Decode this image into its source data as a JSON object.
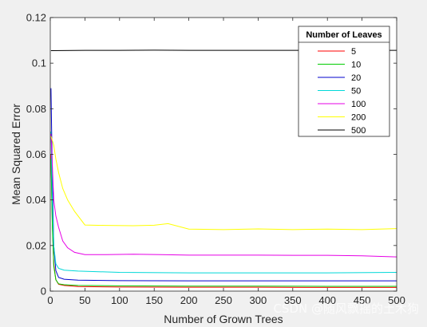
{
  "chart_data": {
    "type": "line",
    "title": "",
    "xlabel": "Number of Grown Trees",
    "ylabel": "Mean Squared Error",
    "xlim": [
      0,
      500
    ],
    "ylim": [
      0,
      0.12
    ],
    "xticks": [
      0,
      50,
      100,
      150,
      200,
      250,
      300,
      350,
      400,
      450,
      500
    ],
    "yticks": [
      0,
      0.02,
      0.04,
      0.06,
      0.08,
      0.1,
      0.12
    ],
    "xtick_labels": [
      "0",
      "50",
      "100",
      "150",
      "200",
      "250",
      "300",
      "350",
      "400",
      "450",
      "500"
    ],
    "ytick_labels": [
      "0",
      "0.02",
      "0.04",
      "0.06",
      "0.08",
      "0.1",
      "0.12"
    ],
    "grid": false,
    "legend": {
      "title": "Number of Leaves",
      "placement": "top-right"
    },
    "series": [
      {
        "name": "5",
        "color": "#ff0000",
        "points": [
          [
            1,
            0.06
          ],
          [
            3,
            0.03
          ],
          [
            5,
            0.012
          ],
          [
            8,
            0.005
          ],
          [
            12,
            0.003
          ],
          [
            20,
            0.0025
          ],
          [
            40,
            0.002
          ],
          [
            100,
            0.0018
          ],
          [
            200,
            0.0017
          ],
          [
            300,
            0.0017
          ],
          [
            400,
            0.0016
          ],
          [
            500,
            0.0016
          ]
        ]
      },
      {
        "name": "10",
        "color": "#00cc00",
        "points": [
          [
            1,
            0.058
          ],
          [
            3,
            0.028
          ],
          [
            5,
            0.011
          ],
          [
            8,
            0.005
          ],
          [
            12,
            0.0032
          ],
          [
            20,
            0.0028
          ],
          [
            40,
            0.0025
          ],
          [
            100,
            0.0023
          ],
          [
            200,
            0.0022
          ],
          [
            300,
            0.0022
          ],
          [
            400,
            0.0021
          ],
          [
            500,
            0.0021
          ]
        ]
      },
      {
        "name": "20",
        "color": "#0000cc",
        "points": [
          [
            1,
            0.089
          ],
          [
            3,
            0.05
          ],
          [
            5,
            0.02
          ],
          [
            8,
            0.009
          ],
          [
            12,
            0.006
          ],
          [
            20,
            0.0052
          ],
          [
            40,
            0.0048
          ],
          [
            100,
            0.0046
          ],
          [
            200,
            0.0045
          ],
          [
            300,
            0.0045
          ],
          [
            400,
            0.0045
          ],
          [
            500,
            0.0045
          ]
        ]
      },
      {
        "name": "50",
        "color": "#00d8d8",
        "points": [
          [
            1,
            0.07
          ],
          [
            3,
            0.04
          ],
          [
            5,
            0.02
          ],
          [
            8,
            0.012
          ],
          [
            12,
            0.01
          ],
          [
            20,
            0.0092
          ],
          [
            40,
            0.0088
          ],
          [
            100,
            0.0082
          ],
          [
            200,
            0.008
          ],
          [
            300,
            0.008
          ],
          [
            400,
            0.008
          ],
          [
            500,
            0.0082
          ]
        ]
      },
      {
        "name": "100",
        "color": "#e600e6",
        "points": [
          [
            1,
            0.069
          ],
          [
            3,
            0.055
          ],
          [
            5,
            0.04
          ],
          [
            8,
            0.033
          ],
          [
            12,
            0.028
          ],
          [
            18,
            0.022
          ],
          [
            25,
            0.019
          ],
          [
            35,
            0.017
          ],
          [
            50,
            0.016
          ],
          [
            80,
            0.016
          ],
          [
            120,
            0.0162
          ],
          [
            160,
            0.016
          ],
          [
            200,
            0.0158
          ],
          [
            250,
            0.0158
          ],
          [
            300,
            0.0158
          ],
          [
            350,
            0.0157
          ],
          [
            400,
            0.0157
          ],
          [
            450,
            0.0155
          ],
          [
            500,
            0.015
          ]
        ]
      },
      {
        "name": "200",
        "color": "#ffff00",
        "points": [
          [
            1,
            0.068
          ],
          [
            3,
            0.066
          ],
          [
            5,
            0.064
          ],
          [
            8,
            0.058
          ],
          [
            12,
            0.052
          ],
          [
            18,
            0.045
          ],
          [
            25,
            0.04
          ],
          [
            35,
            0.035
          ],
          [
            50,
            0.029
          ],
          [
            80,
            0.0288
          ],
          [
            120,
            0.0287
          ],
          [
            150,
            0.0289
          ],
          [
            170,
            0.0296
          ],
          [
            200,
            0.0272
          ],
          [
            250,
            0.027
          ],
          [
            300,
            0.0273
          ],
          [
            350,
            0.027
          ],
          [
            400,
            0.0272
          ],
          [
            450,
            0.027
          ],
          [
            500,
            0.0274
          ]
        ]
      },
      {
        "name": "500",
        "color": "#000000",
        "points": [
          [
            1,
            0.1055
          ],
          [
            50,
            0.1056
          ],
          [
            100,
            0.1056
          ],
          [
            150,
            0.1057
          ],
          [
            200,
            0.1056
          ],
          [
            250,
            0.1056
          ],
          [
            300,
            0.1056
          ],
          [
            350,
            0.1056
          ],
          [
            400,
            0.1056
          ],
          [
            450,
            0.1056
          ],
          [
            500,
            0.1056
          ]
        ]
      }
    ]
  },
  "watermark": "CSDN @随风飘摇的土木狗"
}
